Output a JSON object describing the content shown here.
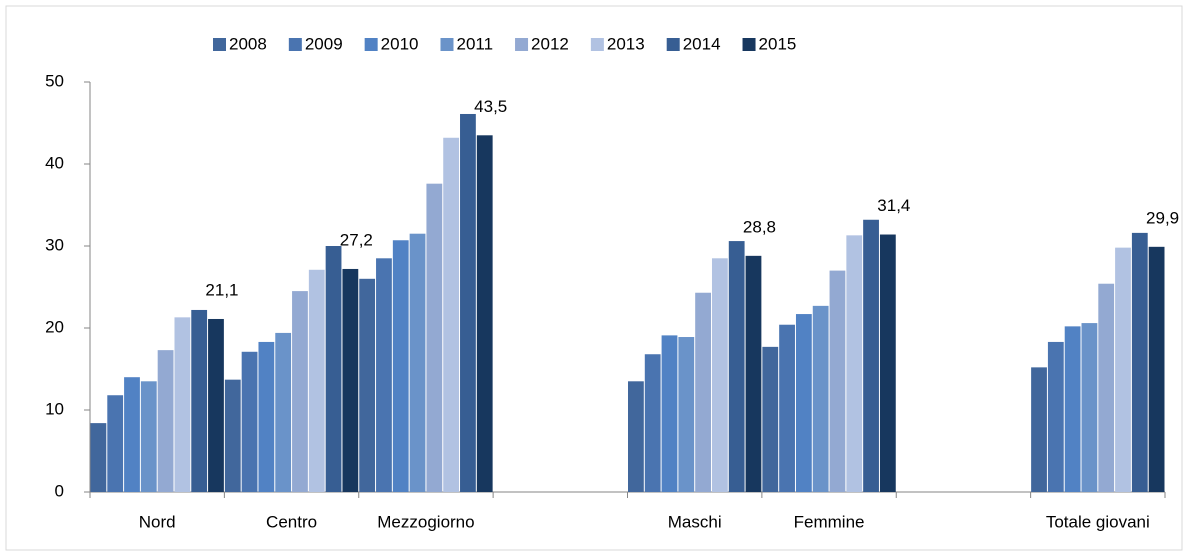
{
  "chart_data": {
    "type": "bar",
    "categories": [
      "Nord",
      "Centro",
      "Mezzogiorno",
      null,
      "Maschi",
      "Femmine",
      null,
      "Totale giovani"
    ],
    "series": [
      {
        "name": "2008",
        "color": "#41679c",
        "values": [
          8.4,
          13.7,
          26.0,
          null,
          13.5,
          17.7,
          null,
          15.2
        ]
      },
      {
        "name": "2009",
        "color": "#4a74b0",
        "values": [
          11.8,
          17.1,
          28.5,
          null,
          16.8,
          20.4,
          null,
          18.3
        ]
      },
      {
        "name": "2010",
        "color": "#5182c4",
        "values": [
          14.0,
          18.3,
          30.7,
          null,
          19.1,
          21.7,
          null,
          20.2
        ]
      },
      {
        "name": "2011",
        "color": "#6a93c9",
        "values": [
          13.5,
          19.4,
          31.5,
          null,
          18.9,
          22.7,
          null,
          20.6
        ]
      },
      {
        "name": "2012",
        "color": "#93a9d2",
        "values": [
          17.3,
          24.5,
          37.6,
          null,
          24.3,
          27.0,
          null,
          25.4
        ]
      },
      {
        "name": "2013",
        "color": "#b1c2e2",
        "values": [
          21.3,
          27.1,
          43.2,
          null,
          28.5,
          31.3,
          null,
          29.8
        ]
      },
      {
        "name": "2014",
        "color": "#375e93",
        "values": [
          22.2,
          30.0,
          46.1,
          null,
          30.6,
          33.2,
          null,
          31.6
        ]
      },
      {
        "name": "2015",
        "color": "#17375e",
        "values": [
          21.1,
          27.2,
          43.5,
          null,
          28.8,
          31.4,
          null,
          29.9
        ],
        "value_labels": [
          "21,1",
          "27,2",
          "43,5",
          null,
          "28,8",
          "31,4",
          null,
          "29,9"
        ]
      }
    ],
    "ylim": [
      0,
      50
    ],
    "yticks": [
      0,
      10,
      20,
      30,
      40,
      50
    ],
    "legend": "top"
  }
}
